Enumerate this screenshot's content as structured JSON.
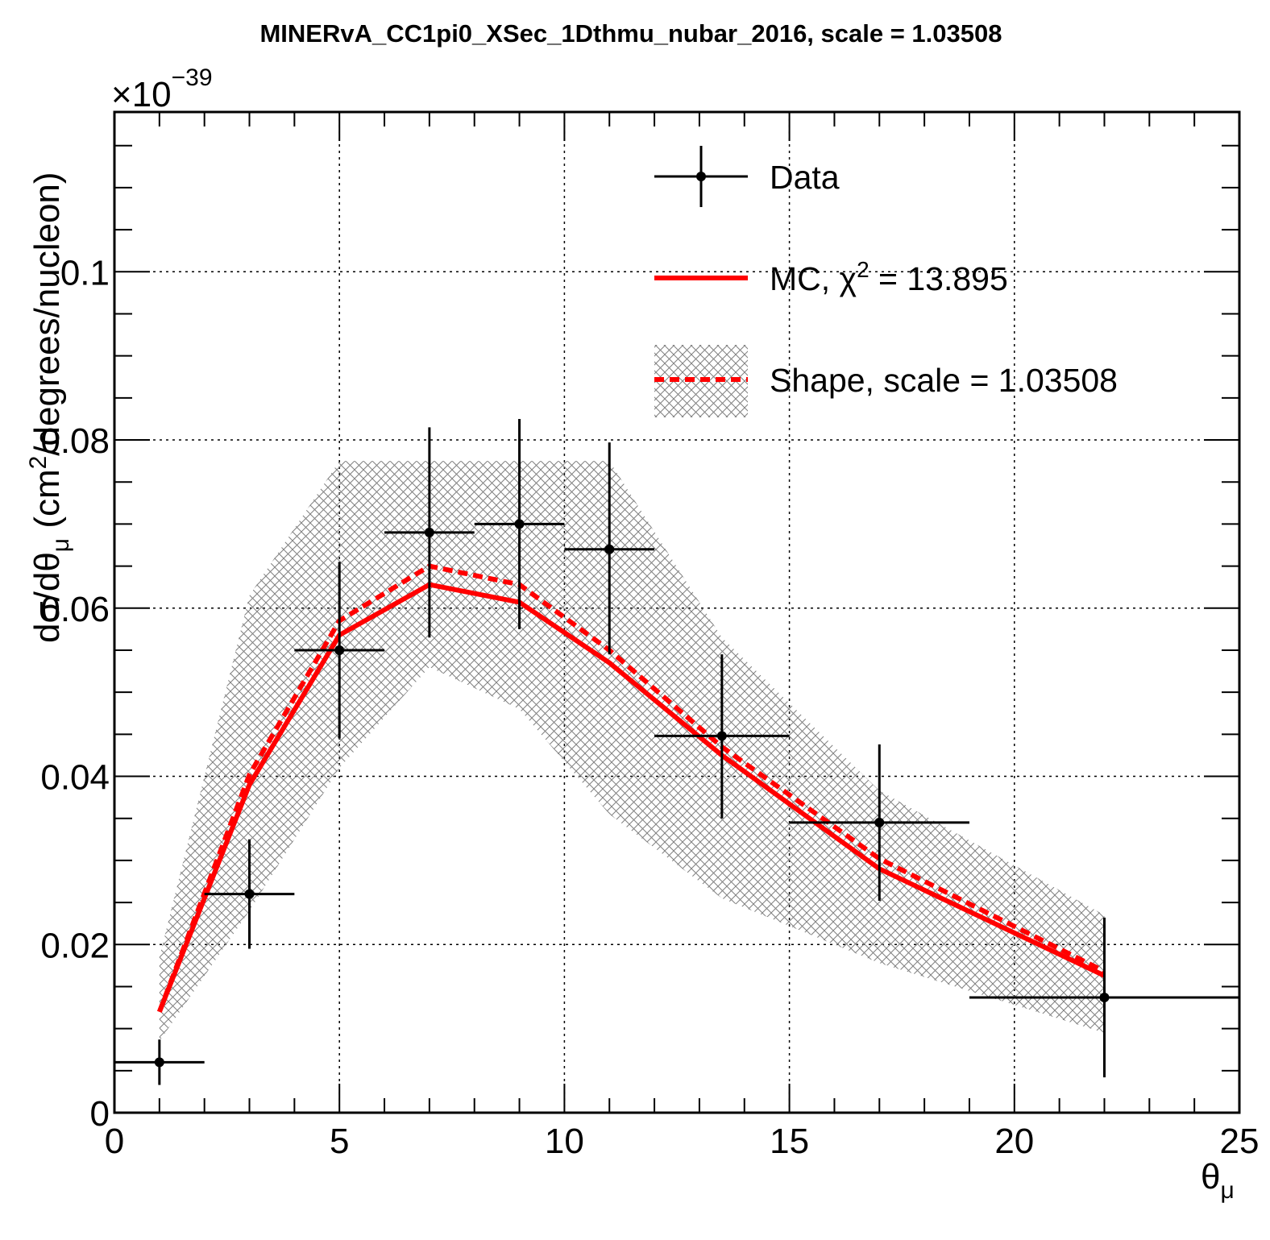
{
  "chart_data": {
    "type": "line",
    "title": "MINERvA_CC1pi0_XSec_1Dthmu_nubar_2016, scale = 1.03508",
    "xlabel": "θ",
    "xlabel_sub": "μ",
    "ylabel_main": "dσ/dθ",
    "ylabel_sub": "μ",
    "ylabel_units_pre": " (cm",
    "ylabel_units_sup": "2",
    "ylabel_units_post": "/degrees/nucleon)",
    "y_multiplier_base": "×10",
    "y_multiplier_exp": "−39",
    "xlim": [
      0,
      25
    ],
    "ylim": [
      0,
      0.119
    ],
    "x_ticks": [
      "0",
      "5",
      "10",
      "15",
      "20",
      "25"
    ],
    "y_ticks": [
      "0",
      "0.02",
      "0.04",
      "0.06",
      "0.08",
      "0.1"
    ],
    "grid": true,
    "legend_position": "top-right",
    "legend": {
      "data": "Data",
      "mc_pre": "MC, χ",
      "mc_sup": "2",
      "mc_post": " = 13.895",
      "shape": "Shape, scale = 1.03508"
    },
    "colors": {
      "data": "#000000",
      "mc": "#ff0000",
      "shape": "#ff0000",
      "band": "#808080"
    },
    "series": [
      {
        "name": "Data",
        "points": [
          {
            "x": 1,
            "xlo": 0,
            "xhi": 2,
            "y": 0.006,
            "ylo": 0.0033,
            "yhi": 0.0087
          },
          {
            "x": 3,
            "xlo": 2,
            "xhi": 4,
            "y": 0.026,
            "ylo": 0.0195,
            "yhi": 0.0325
          },
          {
            "x": 5,
            "xlo": 4,
            "xhi": 6,
            "y": 0.055,
            "ylo": 0.0445,
            "yhi": 0.0655
          },
          {
            "x": 7,
            "xlo": 6,
            "xhi": 8,
            "y": 0.069,
            "ylo": 0.0565,
            "yhi": 0.0815
          },
          {
            "x": 9,
            "xlo": 8,
            "xhi": 10,
            "y": 0.07,
            "ylo": 0.0575,
            "yhi": 0.0825
          },
          {
            "x": 11,
            "xlo": 10,
            "xhi": 12,
            "y": 0.067,
            "ylo": 0.0545,
            "yhi": 0.0797
          },
          {
            "x": 13.5,
            "xlo": 12,
            "xhi": 15,
            "y": 0.0448,
            "ylo": 0.035,
            "yhi": 0.0545
          },
          {
            "x": 17,
            "xlo": 15,
            "xhi": 19,
            "y": 0.0345,
            "ylo": 0.0252,
            "yhi": 0.0438
          },
          {
            "x": 22,
            "xlo": 19,
            "xhi": 25,
            "y": 0.0137,
            "ylo": 0.0042,
            "yhi": 0.0232
          }
        ]
      },
      {
        "name": "MC",
        "x": [
          1,
          3,
          5,
          7,
          9,
          11,
          13.5,
          17,
          22
        ],
        "y": [
          0.012,
          0.039,
          0.0568,
          0.0628,
          0.0607,
          0.0535,
          0.0425,
          0.029,
          0.0163
        ]
      },
      {
        "name": "Shape",
        "x": [
          1,
          3,
          5,
          7,
          9,
          11,
          13.5,
          17,
          22
        ],
        "y": [
          0.012,
          0.0402,
          0.0585,
          0.065,
          0.0628,
          0.055,
          0.0435,
          0.0302,
          0.0168
        ]
      }
    ],
    "band": {
      "x": [
        1,
        3,
        5,
        7,
        9,
        11,
        13.5,
        17,
        22
      ],
      "upper": [
        0.0185,
        0.0615,
        0.0775,
        0.0775,
        0.0775,
        0.0775,
        0.0565,
        0.0383,
        0.0235
      ],
      "lower": [
        0.0085,
        0.024,
        0.041,
        0.053,
        0.048,
        0.0355,
        0.0255,
        0.0178,
        0.0095
      ]
    }
  }
}
